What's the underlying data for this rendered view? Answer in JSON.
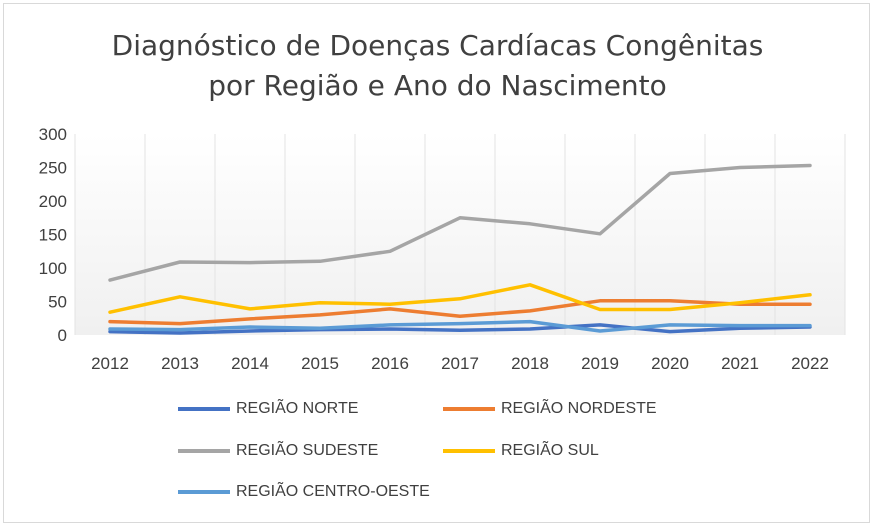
{
  "chart_data": {
    "type": "line",
    "title_line1": "Diagnóstico de Doenças Cardíacas Congênitas",
    "title_line2": "por Região e Ano do Nascimento",
    "categories": [
      "2012",
      "2013",
      "2014",
      "2015",
      "2016",
      "2017",
      "2018",
      "2019",
      "2020",
      "2021",
      "2022"
    ],
    "ylim": [
      0,
      300
    ],
    "yticks": [
      0,
      50,
      100,
      150,
      200,
      250,
      300
    ],
    "grid": true,
    "legend_position": "bottom",
    "series": [
      {
        "name": "REGIÃO NORTE",
        "color": "#4472C4",
        "values": [
          5,
          3,
          6,
          8,
          9,
          7,
          9,
          15,
          5,
          10,
          12
        ]
      },
      {
        "name": "REGIÃO NORDESTE",
        "color": "#ED7D31",
        "values": [
          20,
          17,
          24,
          30,
          39,
          28,
          36,
          51,
          51,
          46,
          46
        ]
      },
      {
        "name": "REGIÃO SUDESTE",
        "color": "#A5A5A5",
        "values": [
          82,
          109,
          108,
          110,
          125,
          175,
          166,
          151,
          241,
          250,
          253
        ]
      },
      {
        "name": "REGIÃO SUL",
        "color": "#FFC000",
        "values": [
          34,
          57,
          39,
          48,
          46,
          54,
          75,
          38,
          38,
          48,
          60
        ]
      },
      {
        "name": "REGIÃO CENTRO-OESTE",
        "color": "#5B9BD5",
        "values": [
          9,
          8,
          12,
          10,
          15,
          17,
          20,
          6,
          15,
          14,
          14
        ]
      }
    ]
  }
}
